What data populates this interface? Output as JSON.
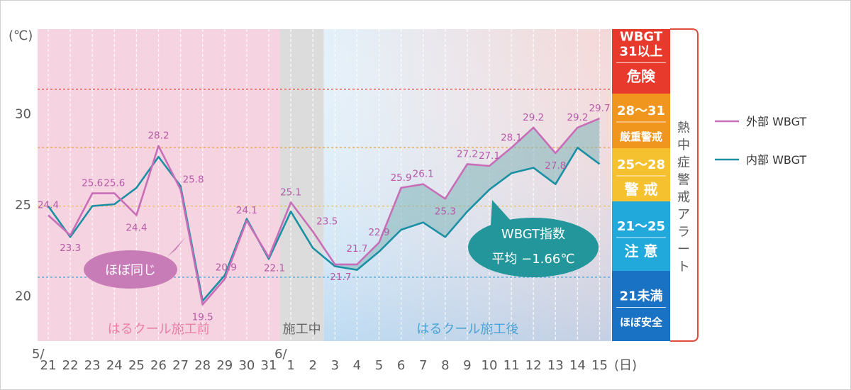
{
  "chart_data": {
    "type": "line",
    "unit_label": "(℃)",
    "day_label": "(日)",
    "x_labels": [
      "21",
      "22",
      "23",
      "24",
      "25",
      "26",
      "27",
      "28",
      "29",
      "30",
      "31",
      "1",
      "2",
      "3",
      "4",
      "5",
      "6",
      "7",
      "8",
      "9",
      "10",
      "11",
      "12",
      "13",
      "14",
      "15"
    ],
    "month_labels": [
      {
        "text": "5/",
        "index": 0
      },
      {
        "text": "6/",
        "index": 11
      }
    ],
    "y_ticks": [
      20,
      25,
      30
    ],
    "ylim": [
      17.5,
      34.6
    ],
    "series": [
      {
        "name": "外部 WBGT",
        "color": "#c86eb8",
        "values": [
          24.4,
          23.3,
          25.6,
          25.6,
          24.4,
          28.2,
          25.8,
          19.5,
          20.9,
          24.1,
          22.1,
          25.1,
          23.5,
          21.7,
          21.7,
          22.9,
          25.9,
          26.1,
          25.3,
          27.2,
          27.1,
          28.1,
          29.2,
          27.8,
          29.2,
          29.7
        ]
      },
      {
        "name": "内部 WBGT",
        "color": "#1b8fa3",
        "values": [
          24.9,
          23.2,
          24.9,
          25.0,
          25.9,
          27.6,
          26.0,
          19.7,
          21.1,
          24.2,
          22.0,
          24.6,
          22.6,
          21.6,
          21.4,
          22.4,
          23.6,
          24.0,
          23.2,
          24.6,
          25.8,
          26.7,
          27.0,
          26.1,
          28.1,
          27.2
        ]
      }
    ],
    "data_labels": [
      "24.4",
      "23.3",
      "25.6",
      "25.6",
      "24.4",
      "28.2",
      "25.8",
      "19.5",
      "20.9",
      "24.1",
      "22.1",
      "25.1",
      "23.5",
      "21.7",
      "21.7",
      "22.9",
      "25.9",
      "26.1",
      "25.3",
      "27.2",
      "27.1",
      "28.1",
      "29.2",
      "27.8",
      "29.2",
      "29.7"
    ],
    "ref_lines": [
      {
        "value": 31.3,
        "color": "#e84b3a"
      },
      {
        "value": 28.1,
        "color": "#eea23a"
      },
      {
        "value": 24.9,
        "color": "#e8c24a"
      },
      {
        "value": 21.0,
        "color": "#4ea8d8"
      }
    ],
    "phases": [
      {
        "label": "はるクール施工前",
        "from_index": 0,
        "to_index": 10.5,
        "color": "#f6d3e0",
        "text_color": "#e87fa5"
      },
      {
        "label": "施工中",
        "from_index": 10.5,
        "to_index": 12.5,
        "color": "#dcdcdc",
        "text_color": "#666666"
      },
      {
        "label": "はるクール施工後",
        "from_index": 12.5,
        "to_index": 25,
        "color": "#cfe4f3",
        "text_color": "#4aa3d6"
      }
    ],
    "callouts": [
      {
        "text": "ほぼ同じ",
        "color": "#c77cb8"
      },
      {
        "line1": "WBGT指数",
        "line2": "平均 −1.66℃",
        "color": "#23969b"
      }
    ],
    "alert_scale": {
      "title": "熱中症警戒アラート",
      "bands": [
        {
          "range": "WBGT\n31以上",
          "level": "危険",
          "color": "#e83a2c"
        },
        {
          "range": "28～31",
          "level": "厳重警戒",
          "color": "#f0961e"
        },
        {
          "range": "25～28",
          "level": "警 戒",
          "color": "#f6c12e"
        },
        {
          "range": "21～25",
          "level": "注 意",
          "color": "#22a9dc"
        },
        {
          "range": "21未満",
          "level": "ほぼ安全",
          "color": "#1a72c4"
        }
      ]
    }
  }
}
